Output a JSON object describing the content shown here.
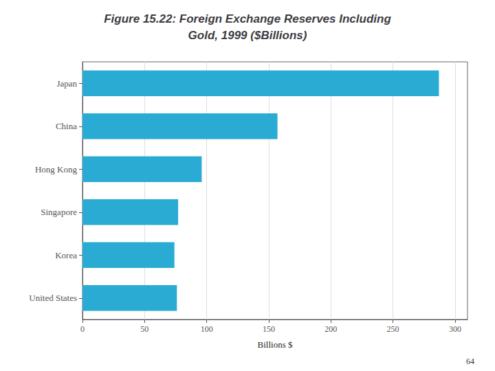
{
  "chart_data": {
    "type": "bar",
    "orientation": "horizontal",
    "title": "Figure 15.22: Foreign Exchange Reserves Including\nGold, 1999 ($Billions)",
    "categories": [
      "Japan",
      "China",
      "Hong Kong",
      "Singapore",
      "Korea",
      "United States"
    ],
    "values": [
      287,
      157,
      96,
      77,
      74,
      76
    ],
    "color": "#29ABD4",
    "xlabel": "Billions $",
    "xlim": [
      0,
      310
    ],
    "xticks": [
      0,
      50,
      100,
      150,
      200,
      250,
      300
    ],
    "grid": true,
    "annotations": [
      "64"
    ]
  }
}
